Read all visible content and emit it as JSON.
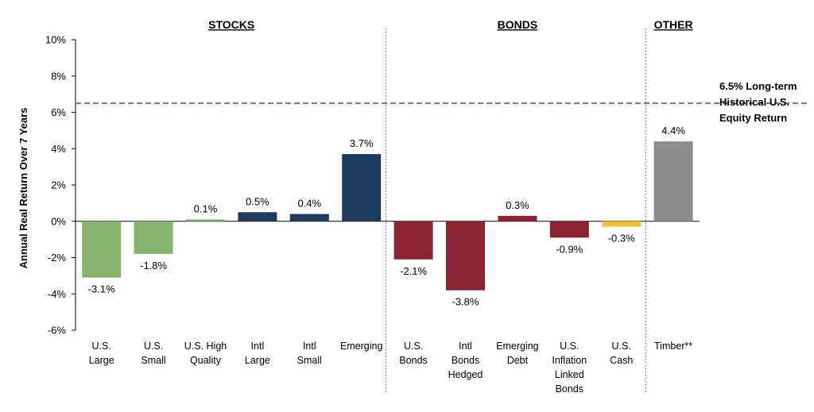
{
  "chart_data": {
    "type": "bar",
    "title": "",
    "ylabel": "Annual Real Return Over 7 Years",
    "ylim": [
      -6,
      10
    ],
    "yticks": [
      10,
      8,
      6,
      4,
      2,
      0,
      -2,
      -4,
      -6
    ],
    "ytick_labels": [
      "10%",
      "8%",
      "6%",
      "4%",
      "2%",
      "0%",
      "-2%",
      "-4%",
      "-6%"
    ],
    "groups": [
      {
        "name": "STOCKS",
        "start": 0,
        "end": 5
      },
      {
        "name": "BONDS",
        "start": 6,
        "end": 10
      },
      {
        "name": "OTHER",
        "start": 11,
        "end": 11
      }
    ],
    "categories": [
      [
        "U.S.",
        "Large"
      ],
      [
        "U.S.",
        "Small"
      ],
      [
        "U.S. High",
        "Quality"
      ],
      [
        "Intl",
        "Large"
      ],
      [
        "Intl",
        "Small"
      ],
      [
        "Emerging"
      ],
      [
        "U.S.",
        "Bonds"
      ],
      [
        "Intl",
        "Bonds",
        "Hedged"
      ],
      [
        "Emerging",
        "Debt"
      ],
      [
        "U.S.",
        "Inflation",
        "Linked",
        "Bonds"
      ],
      [
        "U.S.",
        "Cash"
      ],
      [
        "Timber**"
      ]
    ],
    "values": [
      -3.1,
      -1.8,
      0.1,
      0.5,
      0.4,
      3.7,
      -2.1,
      -3.8,
      0.3,
      -0.9,
      -0.3,
      4.4
    ],
    "value_labels": [
      "-3.1%",
      "-1.8%",
      "0.1%",
      "0.5%",
      "0.4%",
      "3.7%",
      "-2.1%",
      "-3.8%",
      "0.3%",
      "-0.9%",
      "-0.3%",
      "4.4%"
    ],
    "colors": [
      "#86b26e",
      "#86b26e",
      "#86b26e",
      "#1f3a5f",
      "#1f3a5f",
      "#1f3a5f",
      "#8b2332",
      "#8b2332",
      "#8b2332",
      "#8b2332",
      "#f2c12e",
      "#8c8c8c"
    ],
    "reference_line": {
      "value": 6.5,
      "label": [
        "6.5% Long-term",
        "Historical U.S.",
        "Equity Return"
      ],
      "color": "#5a7fa3"
    },
    "grid": false,
    "legend": "none"
  }
}
